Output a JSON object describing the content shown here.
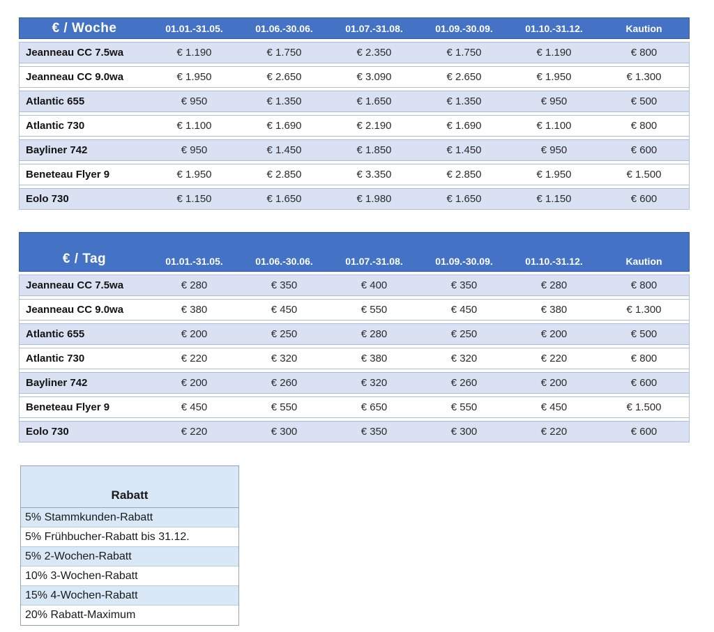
{
  "colors": {
    "header_bg": "#4472C4",
    "header_text": "#FFFFFF",
    "price_row_blue": "#D9E1F2",
    "row_white": "#FFFFFF",
    "grid_line": "#A9BDDB",
    "discount_blue": "#D8E8F6",
    "discount_border": "#97A3B3",
    "text_dark": "#1A1A1A"
  },
  "price_tables": [
    {
      "id": "woche",
      "title": "€ / Woche",
      "columns": [
        "01.01.-31.05.",
        "01.06.-30.06.",
        "01.07.-31.08.",
        "01.09.-30.09.",
        "01.10.-31.12.",
        "Kaution"
      ],
      "rows": [
        {
          "name": "Jeanneau CC 7.5wa",
          "values": [
            "€ 1.190",
            "€ 1.750",
            "€ 2.350",
            "€ 1.750",
            "€ 1.190",
            "€ 800"
          ]
        },
        {
          "name": "Jeanneau CC 9.0wa",
          "values": [
            "€ 1.950",
            "€ 2.650",
            "€ 3.090",
            "€ 2.650",
            "€ 1.950",
            "€ 1.300"
          ]
        },
        {
          "name": "Atlantic 655",
          "values": [
            "€ 950",
            "€ 1.350",
            "€ 1.650",
            "€ 1.350",
            "€ 950",
            "€ 500"
          ]
        },
        {
          "name": "Atlantic 730",
          "values": [
            "€ 1.100",
            "€ 1.690",
            "€ 2.190",
            "€ 1.690",
            "€ 1.100",
            "€ 800"
          ]
        },
        {
          "name": "Bayliner 742",
          "values": [
            "€ 950",
            "€ 1.450",
            "€ 1.850",
            "€ 1.450",
            "€ 950",
            "€ 600"
          ]
        },
        {
          "name": "Beneteau Flyer 9",
          "values": [
            "€ 1.950",
            "€ 2.850",
            "€ 3.350",
            "€ 2.850",
            "€ 1.950",
            "€ 1.500"
          ]
        },
        {
          "name": "Eolo 730",
          "values": [
            "€ 1.150",
            "€ 1.650",
            "€ 1.980",
            "€ 1.650",
            "€ 1.150",
            "€ 600"
          ]
        }
      ]
    },
    {
      "id": "tag",
      "title": "€ / Tag",
      "columns": [
        "01.01.-31.05.",
        "01.06.-30.06.",
        "01.07.-31.08.",
        "01.09.-30.09.",
        "01.10.-31.12.",
        "Kaution"
      ],
      "rows": [
        {
          "name": "Jeanneau CC 7.5wa",
          "values": [
            "€ 280",
            "€ 350",
            "€ 400",
            "€ 350",
            "€ 280",
            "€ 800"
          ]
        },
        {
          "name": "Jeanneau CC 9.0wa",
          "values": [
            "€ 380",
            "€ 450",
            "€ 550",
            "€ 450",
            "€ 380",
            "€ 1.300"
          ]
        },
        {
          "name": "Atlantic 655",
          "values": [
            "€ 200",
            "€ 250",
            "€ 280",
            "€ 250",
            "€ 200",
            "€ 500"
          ]
        },
        {
          "name": "Atlantic 730",
          "values": [
            "€ 220",
            "€ 320",
            "€ 380",
            "€ 320",
            "€ 220",
            "€ 800"
          ]
        },
        {
          "name": "Bayliner 742",
          "values": [
            "€ 200",
            "€ 260",
            "€ 320",
            "€ 260",
            "€ 200",
            "€ 600"
          ]
        },
        {
          "name": "Beneteau Flyer 9",
          "values": [
            "€ 450",
            "€ 550",
            "€ 650",
            "€ 550",
            "€ 450",
            "€ 1.500"
          ]
        },
        {
          "name": "Eolo 730",
          "values": [
            "€ 220",
            "€ 300",
            "€ 350",
            "€ 300",
            "€ 220",
            "€ 600"
          ]
        }
      ]
    }
  ],
  "discount_table": {
    "title": "Rabatt",
    "rows": [
      "5% Stammkunden-Rabatt",
      "5% Frühbucher-Rabatt bis 31.12.",
      "5% 2-Wochen-Rabatt",
      "10% 3-Wochen-Rabatt",
      "15% 4-Wochen-Rabatt",
      "20% Rabatt-Maximum"
    ]
  }
}
